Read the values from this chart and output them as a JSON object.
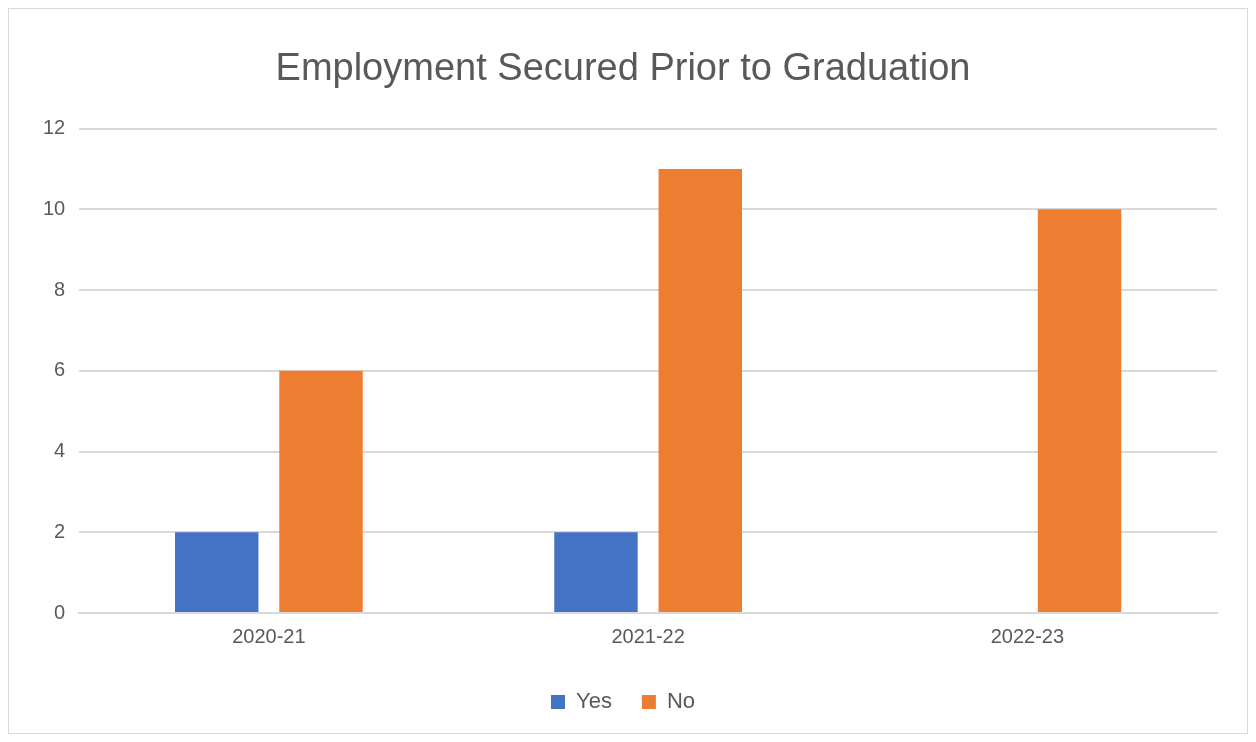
{
  "chart_data": {
    "type": "bar",
    "title": "Employment Secured Prior to Graduation",
    "categories": [
      "2020-21",
      "2021-22",
      "2022-23"
    ],
    "series": [
      {
        "name": "Yes",
        "color": "#4472c4",
        "values": [
          2,
          2,
          0
        ]
      },
      {
        "name": "No",
        "color": "#ed7d31",
        "values": [
          6,
          11,
          10
        ]
      }
    ],
    "ylim": [
      0,
      12
    ],
    "yticks": [
      0,
      2,
      4,
      6,
      8,
      10,
      12
    ],
    "grid": "y",
    "legend": "bottom"
  }
}
